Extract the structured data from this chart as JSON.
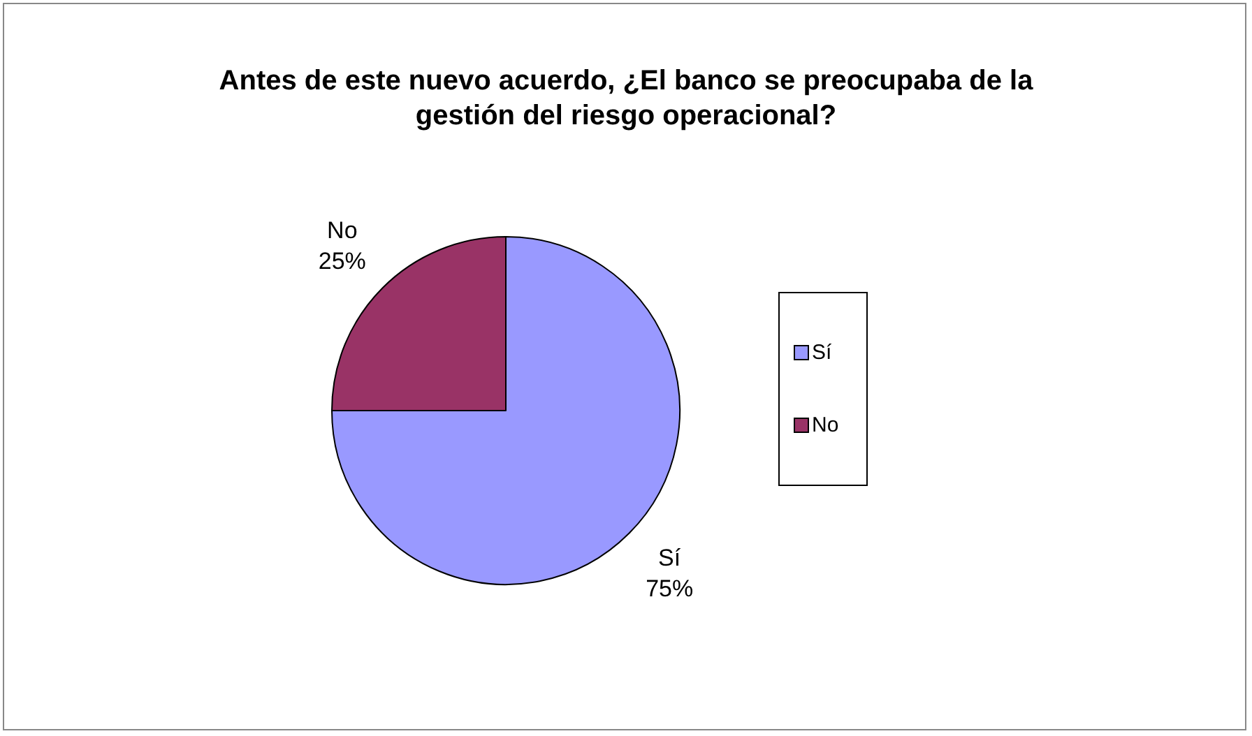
{
  "chart_data": {
    "type": "pie",
    "title": "Antes de este nuevo acuerdo, ¿El banco se preocupaba de la gestión del riesgo operacional?",
    "categories": [
      "Sí",
      "No"
    ],
    "values": [
      75,
      25
    ],
    "colors": [
      "#9999ff",
      "#993366"
    ],
    "value_labels": [
      "75%",
      "25%"
    ],
    "legend": "right"
  }
}
